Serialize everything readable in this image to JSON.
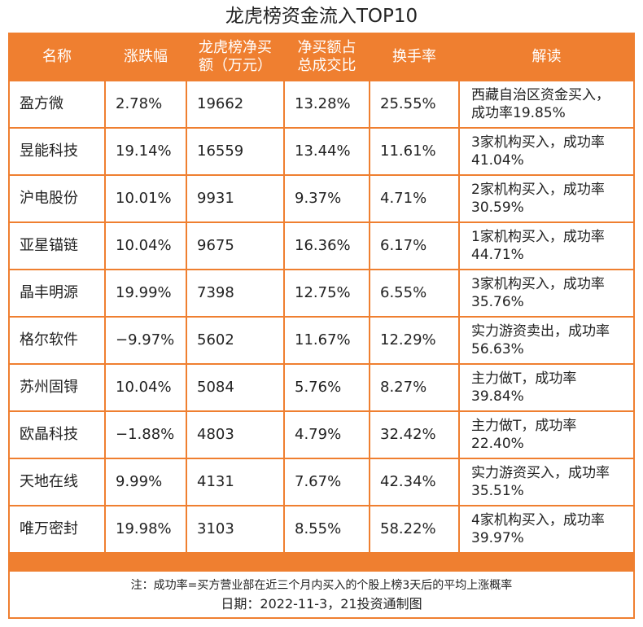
{
  "title": "龙虎榜资金流入TOP10",
  "table": {
    "headers": [
      "名称",
      "涨跌幅",
      "龙虎榜净买额（万元）",
      "净买额占总成交比",
      "换手率",
      "解读"
    ],
    "rows": [
      [
        "盈方微",
        "2.78%",
        "19662",
        "13.28%",
        "25.55%",
        "西藏自治区资金买入，成功率19.85%"
      ],
      [
        "昱能科技",
        "19.14%",
        "16559",
        "13.44%",
        "11.61%",
        "3家机构买入，成功率41.04%"
      ],
      [
        "沪电股份",
        "10.01%",
        "9931",
        "9.37%",
        "4.71%",
        "2家机构买入，成功率30.59%"
      ],
      [
        "亚星锚链",
        "10.04%",
        "9675",
        "16.36%",
        "6.17%",
        "1家机构买入，成功率44.71%"
      ],
      [
        "晶丰明源",
        "19.99%",
        "7398",
        "12.75%",
        "6.55%",
        "3家机构买入，成功率35.76%"
      ],
      [
        "格尔软件",
        "−9.97%",
        "5602",
        "11.67%",
        "12.29%",
        "实力游资卖出，成功率56.63%"
      ],
      [
        "苏州固锝",
        "10.04%",
        "5084",
        "5.76%",
        "8.27%",
        "主力做T，成功率39.84%"
      ],
      [
        "欧晶科技",
        "−1.88%",
        "4803",
        "4.79%",
        "32.42%",
        "主力做T，成功率22.40%"
      ],
      [
        "天地在线",
        "9.99%",
        "4131",
        "7.67%",
        "42.34%",
        "实力游资买入，成功率35.51%"
      ],
      [
        "唯万密封",
        "19.98%",
        "3103",
        "8.55%",
        "58.22%",
        "4家机构买入，成功率39.97%"
      ]
    ]
  },
  "footer": {
    "note": "注：成功率=买方营业部在近三个月内买入的个股上榜3天后的平均上涨概率",
    "date": "日期：2022-11-3，21投资通制图"
  }
}
